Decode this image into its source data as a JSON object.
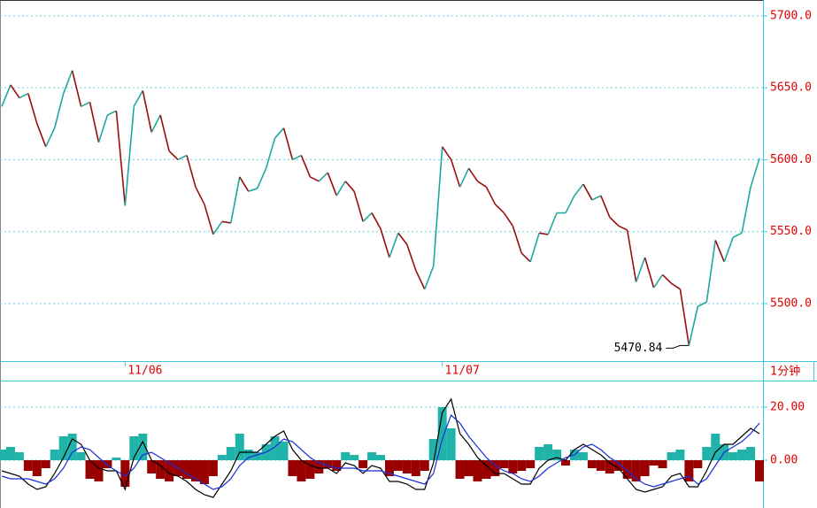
{
  "chart_data": [
    {
      "type": "line",
      "values": [
        5637,
        5652,
        5643,
        5646,
        5625,
        5609,
        5622,
        5646,
        5662,
        5637,
        5640,
        5612,
        5631,
        5634,
        5568,
        5637,
        5648,
        5619,
        5631,
        5606,
        5600,
        5603,
        5581,
        5569,
        5548,
        5557,
        5556,
        5588,
        5578,
        5580,
        5594,
        5615,
        5622,
        5600,
        5603,
        5588,
        5585,
        5591,
        5575,
        5585,
        5578,
        5557,
        5563,
        5552,
        5532,
        5549,
        5541,
        5523,
        5510,
        5526,
        5609,
        5600,
        5581,
        5594,
        5585,
        5581,
        5569,
        5563,
        5554,
        5535,
        5529,
        5549,
        5548,
        5563,
        5563,
        5575,
        5583,
        5572,
        5575,
        5560,
        5554,
        5551,
        5515,
        5532,
        5511,
        5520,
        5514,
        5510,
        5470.84,
        5498,
        5501,
        5544,
        5529,
        5546,
        5549,
        5581,
        5601
      ],
      "up_color": "#1fa89e",
      "down_color": "#9a0d0d",
      "xlim": [
        0,
        86
      ],
      "xticks": [
        {
          "value": 14,
          "label": "11/06"
        },
        {
          "value": 50,
          "label": "11/07"
        }
      ],
      "ylim": [
        5460,
        5711
      ],
      "yticks": [
        {
          "value": 5500,
          "label": "5500.0"
        },
        {
          "value": 5550,
          "label": "5550.0"
        },
        {
          "value": 5600,
          "label": "5600.0"
        },
        {
          "value": 5650,
          "label": "5650.0"
        },
        {
          "value": 5700,
          "label": "5700.0"
        }
      ],
      "grid": true,
      "annotation": {
        "text": "5470.84",
        "x": 78,
        "y": 5470.84
      },
      "period_label": "1分钟"
    },
    {
      "type": "macd",
      "bars": {
        "up_color": "#1fb3aa",
        "down_color": "#990000",
        "values": [
          4,
          5,
          3,
          -4,
          -6,
          -3,
          4,
          9,
          10,
          3,
          -7,
          -8,
          -3,
          1,
          -10,
          9,
          10,
          -5,
          -7,
          -8,
          -6,
          -7,
          -8,
          -9,
          -6,
          2,
          5,
          10,
          4,
          3,
          6,
          9,
          7,
          -6,
          -8,
          -7,
          -5,
          -3,
          -4,
          3,
          2,
          -3,
          3,
          2,
          -6,
          -4,
          -5,
          -6,
          -4,
          8,
          20,
          12,
          -7,
          -6,
          -8,
          -7,
          -6,
          -3,
          -5,
          -4,
          -3,
          5,
          6,
          4,
          -2,
          4,
          3,
          -3,
          -4,
          -5,
          -4,
          -7,
          -8,
          -6,
          -2,
          -3,
          3,
          4,
          -8,
          -3,
          5,
          10,
          6,
          3,
          4,
          5,
          -8
        ]
      },
      "series": [
        {
          "color": "#000000",
          "values": [
            -4,
            -5,
            -6,
            -9,
            -11,
            -10,
            -5,
            1,
            8,
            6,
            0,
            -3,
            -4,
            -4,
            -11,
            1,
            7,
            0,
            -2,
            -5,
            -6,
            -8,
            -11,
            -13,
            -14,
            -9,
            -4,
            3,
            3,
            3,
            6,
            9,
            11,
            4,
            0,
            -2,
            -3,
            -3,
            -5,
            -1,
            -2,
            -5,
            -2,
            -3,
            -8,
            -8,
            -9,
            -11,
            -11,
            -1,
            18,
            23,
            10,
            6,
            1,
            -2,
            -5,
            -5,
            -7,
            -9,
            -9,
            -3,
            0,
            1,
            0,
            4,
            6,
            4,
            2,
            -1,
            -3,
            -7,
            -11,
            -12,
            -11,
            -10,
            -6,
            -5,
            -10,
            -10,
            -4,
            3,
            6,
            6,
            9,
            12,
            10
          ]
        },
        {
          "color": "#1a2fd6",
          "values": [
            -6,
            -7,
            -7,
            -7,
            -8,
            -9,
            -7,
            -3,
            3,
            5,
            4,
            1,
            -2,
            -4,
            -6,
            -3,
            2,
            3,
            1,
            -1,
            -3,
            -5,
            -7,
            -9,
            -11,
            -10,
            -7,
            -2,
            1,
            2,
            3,
            5,
            8,
            7,
            4,
            1,
            -1,
            -2,
            -3,
            -3,
            -3,
            -4,
            -4,
            -4,
            -5,
            -6,
            -7,
            -8,
            -9,
            -5,
            8,
            17,
            14,
            9,
            5,
            1,
            -2,
            -4,
            -5,
            -7,
            -8,
            -6,
            -3,
            -1,
            1,
            2,
            5,
            6,
            4,
            1,
            -1,
            -4,
            -7,
            -9,
            -10,
            -9,
            -8,
            -7,
            -6,
            -9,
            -7,
            -2,
            3,
            5,
            7,
            10,
            14
          ]
        }
      ],
      "xlim": [
        0,
        86
      ],
      "ylim": [
        -18,
        30
      ],
      "yticks": [
        {
          "value": 0,
          "label": "0.00"
        },
        {
          "value": 20,
          "label": "20.00"
        }
      ],
      "grid": true
    }
  ]
}
